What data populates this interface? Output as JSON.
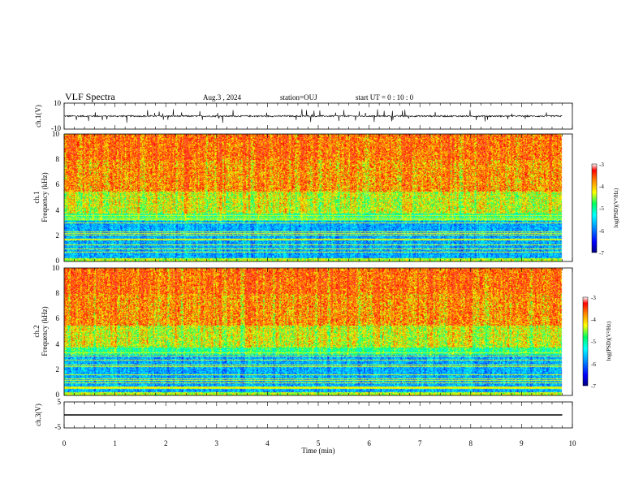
{
  "header": {
    "title": "VLF Spectra",
    "date": "Aug.3 , 2024",
    "station": "station=OUJ",
    "start": "start UT = 0 : 10 : 0"
  },
  "chart_data": {
    "type": "heatmap",
    "xlabel": "Time (min)",
    "xlim": [
      0,
      10
    ],
    "x_ticks": [
      "0",
      "1",
      "2",
      "3",
      "4",
      "5",
      "6",
      "7",
      "8",
      "9",
      "10"
    ],
    "data_end_min": 9.8,
    "panels": [
      {
        "kind": "waveform",
        "ylabel": "ch.1(V)",
        "ylim": [
          -10,
          10
        ],
        "y_ticks": [
          "10",
          "-10"
        ],
        "baseline": 0,
        "noise_amplitude": 0.6,
        "spike_amplitude": 5
      },
      {
        "kind": "spectrogram",
        "ylabel_top": "ch.1",
        "ylabel_bottom": "Frequency (kHz)",
        "ylim": [
          0,
          10
        ],
        "y_ticks": [
          "0",
          "2",
          "4",
          "6",
          "8",
          "10"
        ],
        "colorbar": {
          "label": "log(PSD)(V²/Hz)",
          "range": [
            -7,
            -3
          ],
          "ticks": [
            "-3",
            "-4",
            "-5",
            "-6",
            "-7"
          ]
        }
      },
      {
        "kind": "spectrogram",
        "ylabel_top": "ch.2",
        "ylabel_bottom": "Frequency (kHz)",
        "ylim": [
          0,
          10
        ],
        "y_ticks": [
          "0",
          "2",
          "4",
          "6",
          "8",
          "10"
        ],
        "colorbar": {
          "label": "log(PSD)(V²/Hz)",
          "range": [
            -7,
            -3
          ],
          "ticks": [
            "-3",
            "-4",
            "-5",
            "-6",
            "-7"
          ]
        }
      },
      {
        "kind": "waveform",
        "ylabel": "ch.3(V)",
        "ylim": [
          -5,
          5
        ],
        "y_ticks": [
          "5",
          "-5"
        ],
        "baseline": 0,
        "noise_amplitude": 0,
        "spike_amplitude": 0
      }
    ]
  }
}
